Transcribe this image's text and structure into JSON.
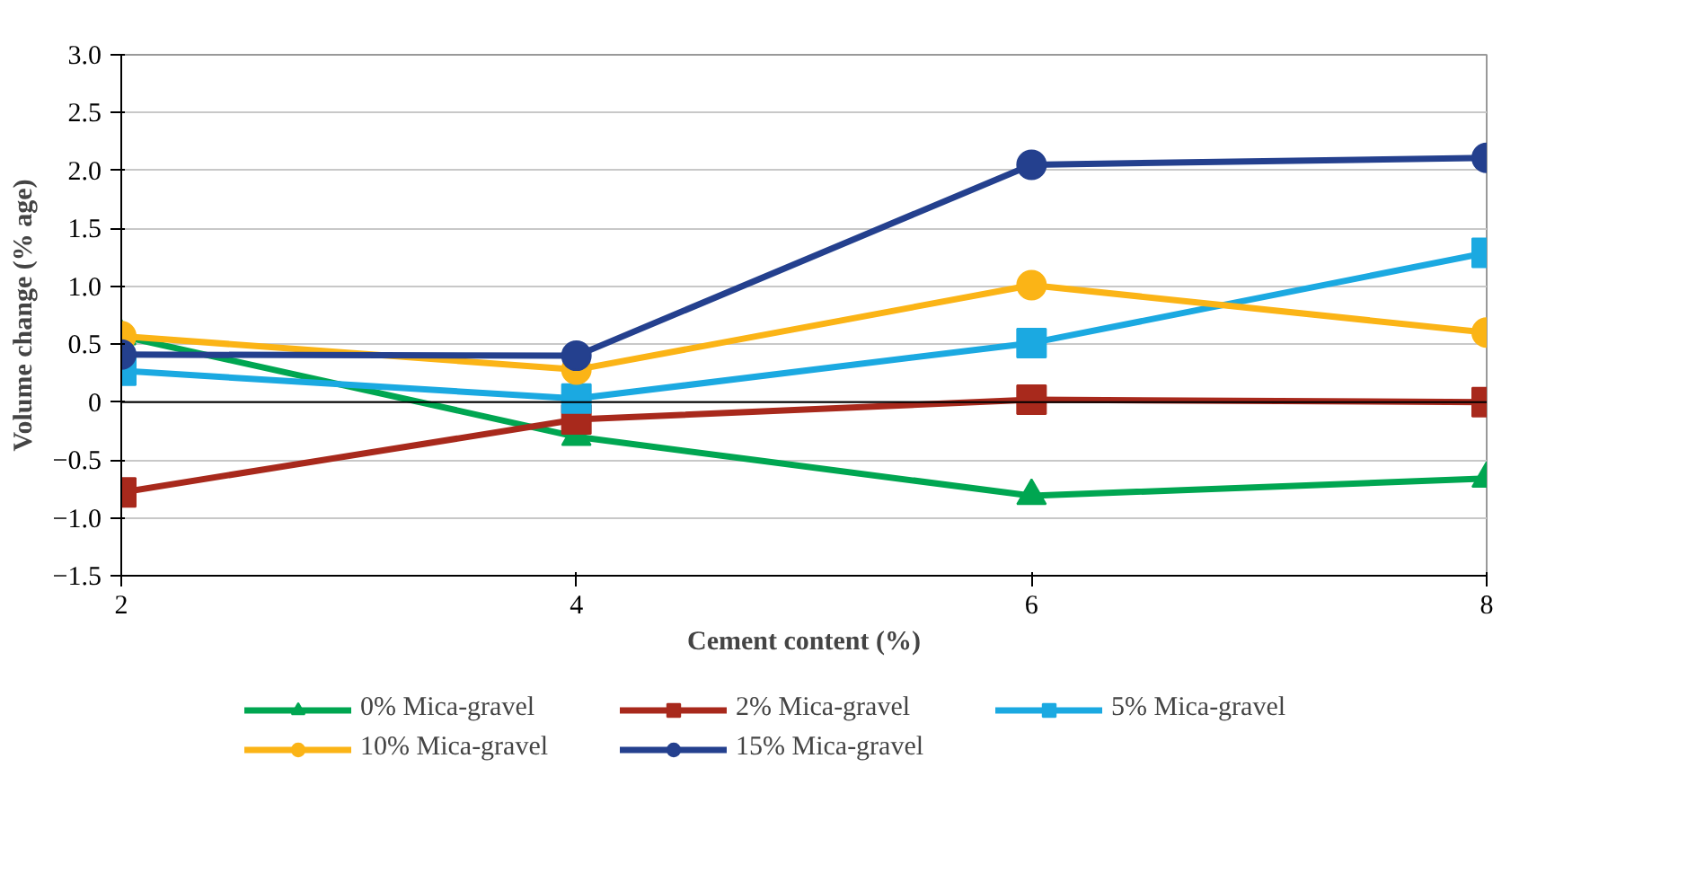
{
  "chart_data": {
    "type": "line",
    "xlabel": "Cement content (%)",
    "ylabel": "Volume change (% age)",
    "x": [
      2,
      4,
      6,
      8
    ],
    "xlim": [
      2,
      8
    ],
    "xticks": [
      2,
      4,
      6,
      8
    ],
    "ylim": [
      -1.5,
      3.0
    ],
    "yticks": [
      {
        "value": -1.5,
        "label": "−1.5"
      },
      {
        "value": -1.0,
        "label": "−1.0"
      },
      {
        "value": -0.5,
        "label": "−0.5"
      },
      0,
      {
        "value": 0.5,
        "label": "0.5"
      },
      {
        "value": 1.0,
        "label": "1.0"
      },
      {
        "value": 1.5,
        "label": "1.5"
      },
      {
        "value": 2.0,
        "label": "2.0"
      },
      {
        "value": 2.5,
        "label": "2.5"
      },
      {
        "value": 3.0,
        "label": "3.0"
      }
    ],
    "grid": "y",
    "legend": "bottom",
    "ref_lines": [
      {
        "axis": "y",
        "value": 0,
        "color": "#000000"
      }
    ],
    "series": [
      {
        "name": "0% Mica-gravel",
        "color": "#00a651",
        "marker": "triangle",
        "values": [
          0.57,
          -0.3,
          -0.81,
          -0.66
        ]
      },
      {
        "name": "2% Mica-gravel",
        "color": "#a8291c",
        "marker": "square",
        "values": [
          -0.78,
          -0.15,
          0.02,
          0.0
        ]
      },
      {
        "name": "5% Mica-gravel",
        "color": "#1ba9e1",
        "marker": "square",
        "values": [
          0.27,
          0.03,
          0.51,
          1.29
        ]
      },
      {
        "name": "10% Mica-gravel",
        "color": "#fbb416",
        "marker": "circle",
        "values": [
          0.57,
          0.28,
          1.01,
          0.6
        ]
      },
      {
        "name": "15% Mica-gravel",
        "color": "#24408e",
        "marker": "circle",
        "values": [
          0.41,
          0.4,
          2.05,
          2.11
        ]
      }
    ]
  }
}
